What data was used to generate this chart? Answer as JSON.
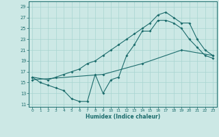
{
  "xlabel": "Humidex (Indice chaleur)",
  "bg_color": "#cce8e5",
  "grid_color": "#a8d4d0",
  "line_color": "#1a6b6b",
  "xlim": [
    -0.5,
    23.5
  ],
  "ylim": [
    10.5,
    30
  ],
  "xticks": [
    0,
    1,
    2,
    3,
    4,
    5,
    6,
    7,
    8,
    9,
    10,
    11,
    12,
    13,
    14,
    15,
    16,
    17,
    18,
    19,
    20,
    21,
    22,
    23
  ],
  "yticks": [
    11,
    13,
    15,
    17,
    19,
    21,
    23,
    25,
    27,
    29
  ],
  "line1_x": [
    0,
    1,
    2,
    3,
    4,
    5,
    6,
    7,
    8,
    9,
    10,
    11,
    12,
    13,
    14,
    15,
    16,
    17,
    18,
    19,
    20,
    21,
    22,
    23
  ],
  "line1_y": [
    16,
    15,
    14.5,
    14,
    13.5,
    12,
    11.5,
    11.5,
    16.5,
    13,
    15.5,
    16,
    20,
    22,
    24.5,
    24.5,
    26.5,
    26.5,
    26,
    25,
    23,
    21.5,
    20,
    19.5
  ],
  "line2_x": [
    0,
    2,
    3,
    4,
    5,
    6,
    7,
    8,
    9,
    10,
    11,
    12,
    13,
    14,
    15,
    16,
    17,
    18,
    19,
    20,
    21,
    22,
    23
  ],
  "line2_y": [
    16,
    15.5,
    16,
    16.5,
    17,
    17.5,
    18.5,
    19,
    20,
    21,
    22,
    23,
    24,
    25,
    26,
    27.5,
    28,
    27,
    26,
    26,
    23,
    21,
    20
  ],
  "line3_x": [
    0,
    9,
    14,
    19,
    23
  ],
  "line3_y": [
    15.5,
    16.5,
    18.5,
    21,
    20
  ]
}
